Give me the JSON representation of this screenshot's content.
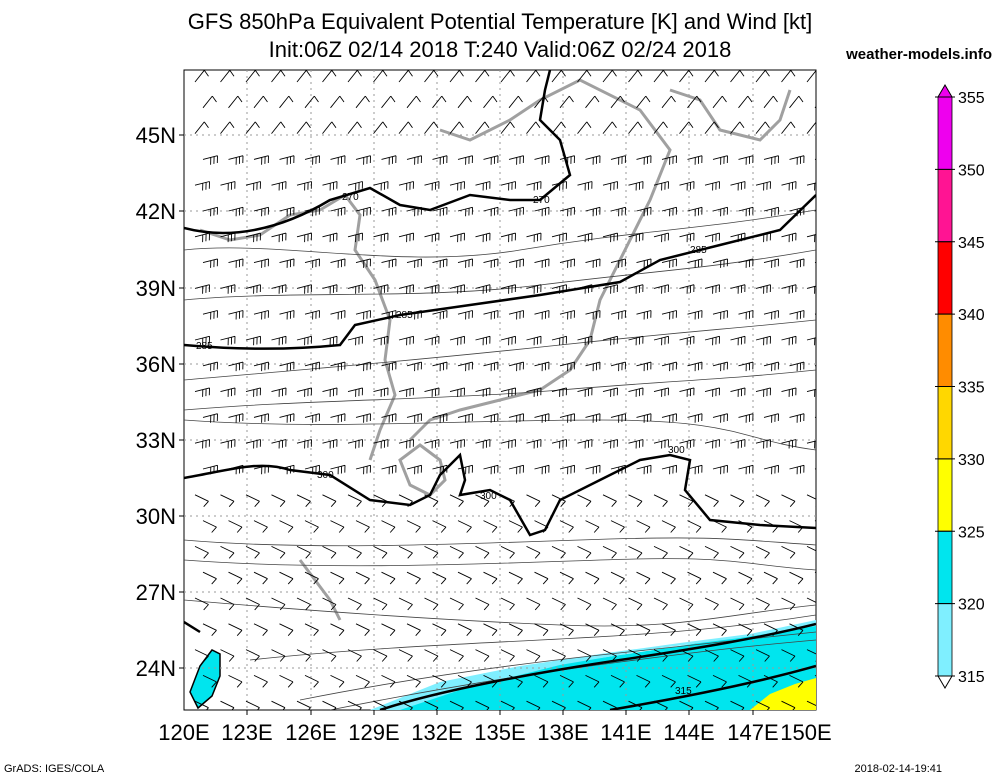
{
  "title_line1": "GFS 850hPa Equivalent Potential Temperature [K] and Wind [kt]",
  "title_line2": "Init:06Z 02/14 2018 T:240 Valid:06Z 02/24 2018",
  "site": "weather-models.info",
  "footer_left": "GrADS: IGES/COLA",
  "footer_right": "2018-02-14-19:41",
  "lat_labels": [
    "45N",
    "42N",
    "39N",
    "36N",
    "33N",
    "30N",
    "27N",
    "24N"
  ],
  "lon_labels": [
    "120E",
    "123E",
    "126E",
    "129E",
    "132E",
    "135E",
    "138E",
    "141E",
    "144E",
    "147E",
    "150E"
  ],
  "colorbar": {
    "levels": [
      "355",
      "350",
      "345",
      "340",
      "335",
      "330",
      "325",
      "320",
      "315"
    ],
    "colors": [
      "#ee00ee",
      "#ff1493",
      "#ff0000",
      "#ff8c00",
      "#ffd700",
      "#ffff00",
      "#00e5ee",
      "#7fefff",
      "#e0ffff"
    ]
  },
  "contour_labels": [
    "270",
    "270",
    "285",
    "285",
    "285",
    "300",
    "300",
    "300",
    "315"
  ]
}
